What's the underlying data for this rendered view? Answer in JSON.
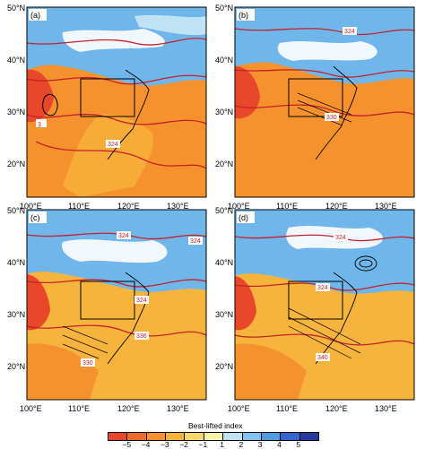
{
  "panels": [
    {
      "label": "(a)"
    },
    {
      "label": "(b)"
    },
    {
      "label": "(c)"
    },
    {
      "label": "(d)"
    }
  ],
  "lat_ticks": [
    "50°N",
    "40°N",
    "30°N",
    "20°N"
  ],
  "lon_ticks": [
    "100°E",
    "110°E",
    "120°E",
    "130°E"
  ],
  "contour_labels": {
    "a": [
      "3",
      "324"
    ],
    "b": [
      "324",
      "330"
    ],
    "c": [
      "324",
      "324",
      "324",
      "336",
      "330"
    ],
    "d": [
      "324",
      "324",
      "340"
    ]
  },
  "colorbar": {
    "title": "Best-lifted index",
    "ticks": [
      "−5",
      "−4",
      "−3",
      "−2",
      "−1",
      "1",
      "2",
      "3",
      "4",
      "5"
    ],
    "colors": [
      "#e8472a",
      "#f06a2a",
      "#f5922e",
      "#f7b43c",
      "#f6d96a",
      "#fbf5a8",
      "#bfe3f5",
      "#7fc3ee",
      "#4f9be0",
      "#3366cc",
      "#233b9e"
    ]
  },
  "colors": {
    "warm": "#f5922e",
    "cool": "#6fb6ea",
    "contour_red": "#c8202a",
    "contour_black": "#000000"
  }
}
